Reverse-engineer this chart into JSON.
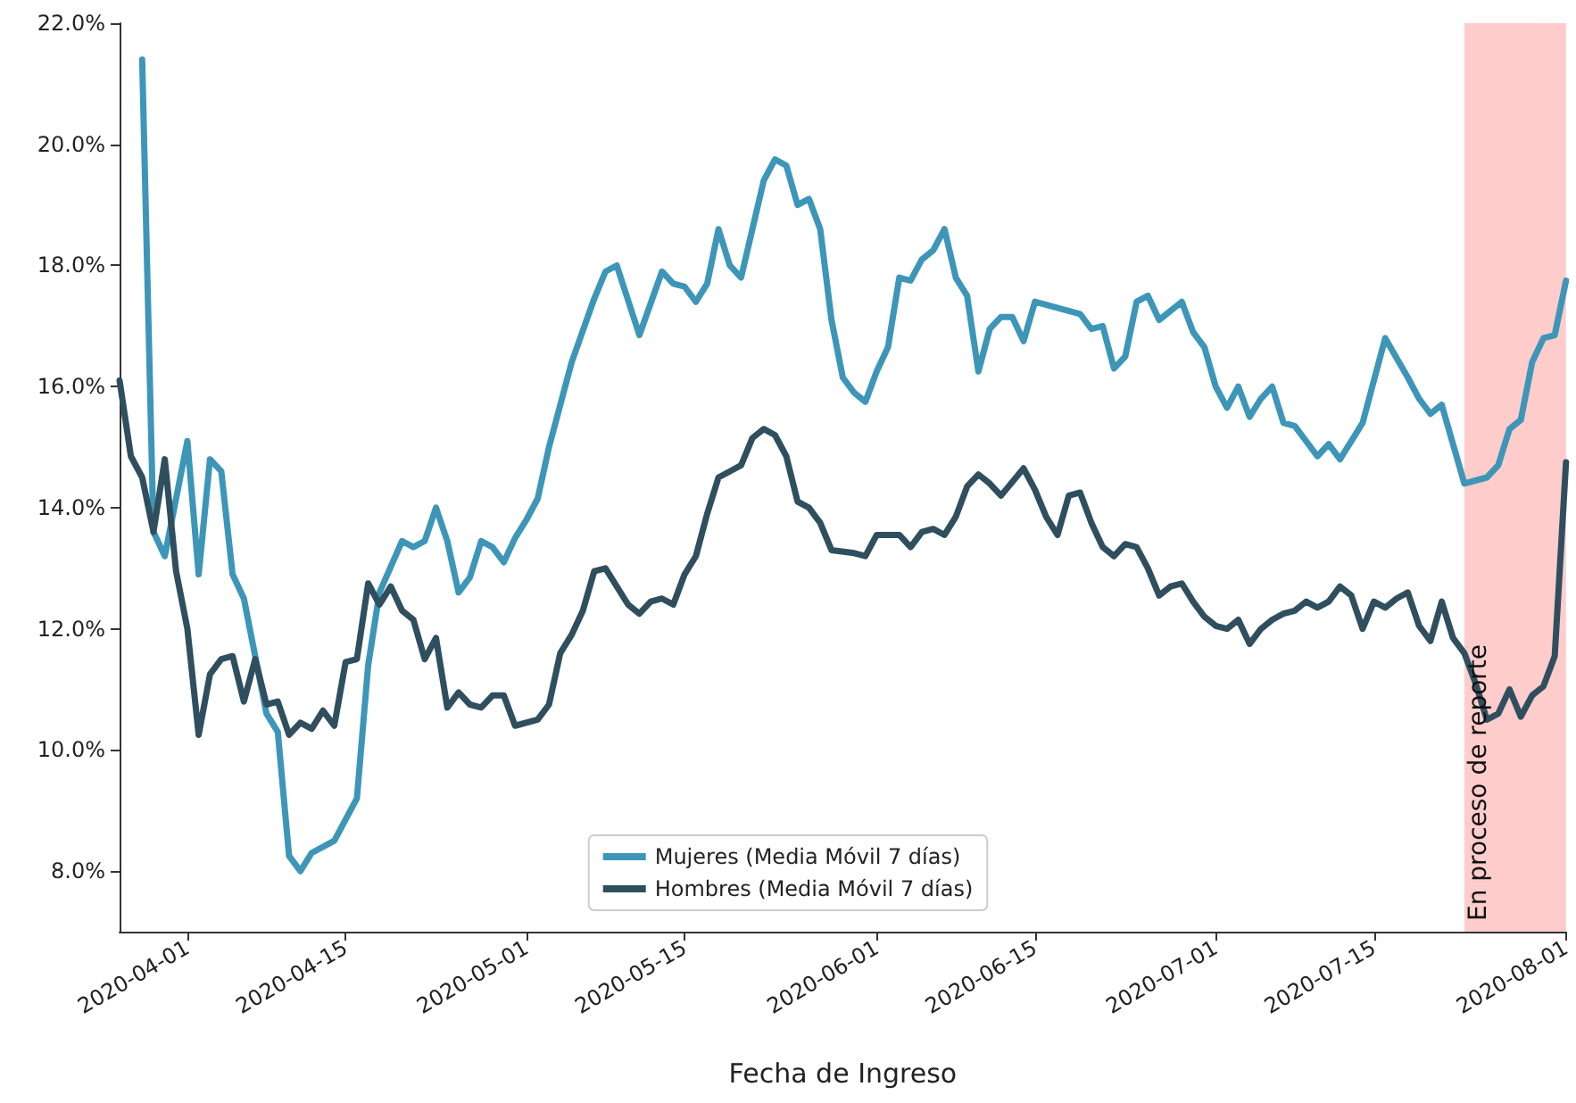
{
  "chart_data": {
    "type": "line",
    "xlabel": "Fecha de Ingreso",
    "xlim": [
      "2020-03-26",
      "2020-08-01"
    ],
    "xticks": [
      "2020-04-01",
      "2020-04-15",
      "2020-05-01",
      "2020-05-15",
      "2020-06-01",
      "2020-06-15",
      "2020-07-01",
      "2020-07-15",
      "2020-08-01"
    ],
    "ylim": [
      7,
      22
    ],
    "yticks": [
      {
        "value": 8,
        "label": "8.0%"
      },
      {
        "value": 10,
        "label": "10.0%"
      },
      {
        "value": 12,
        "label": "12.0%"
      },
      {
        "value": 14,
        "label": "14.0%"
      },
      {
        "value": 16,
        "label": "16.0%"
      },
      {
        "value": 18,
        "label": "18.0%"
      },
      {
        "value": 20,
        "label": "20.0%"
      },
      {
        "value": 22,
        "label": "22.0%"
      }
    ],
    "grid": false,
    "legend": "bottom",
    "marker": "none",
    "line_style": "solid",
    "bands": [
      {
        "axis": "x",
        "from": "2020-07-23",
        "to": "2020-08-01",
        "label": "En proceso de reporte",
        "color": "#ffcccc"
      }
    ],
    "series": [
      {
        "name": "Mujeres (Media Móvil 7 días)",
        "color": "#3d96b8",
        "x": [
          "2020-03-28",
          "2020-03-29",
          "2020-03-30",
          "2020-04-01",
          "2020-04-02",
          "2020-04-03",
          "2020-04-04",
          "2020-04-05",
          "2020-04-06",
          "2020-04-08",
          "2020-04-09",
          "2020-04-10",
          "2020-04-11",
          "2020-04-12",
          "2020-04-14",
          "2020-04-16",
          "2020-04-17",
          "2020-04-18",
          "2020-04-20",
          "2020-04-21",
          "2020-04-22",
          "2020-04-23",
          "2020-04-24",
          "2020-04-25",
          "2020-04-26",
          "2020-04-27",
          "2020-04-28",
          "2020-04-29",
          "2020-04-30",
          "2020-05-01",
          "2020-05-02",
          "2020-05-03",
          "2020-05-05",
          "2020-05-07",
          "2020-05-08",
          "2020-05-09",
          "2020-05-11",
          "2020-05-13",
          "2020-05-14",
          "2020-05-15",
          "2020-05-16",
          "2020-05-17",
          "2020-05-18",
          "2020-05-19",
          "2020-05-20",
          "2020-05-22",
          "2020-05-23",
          "2020-05-24",
          "2020-05-25",
          "2020-05-26",
          "2020-05-27",
          "2020-05-28",
          "2020-05-29",
          "2020-05-30",
          "2020-05-31",
          "2020-06-01",
          "2020-06-02",
          "2020-06-03",
          "2020-06-04",
          "2020-06-05",
          "2020-06-06",
          "2020-06-07",
          "2020-06-08",
          "2020-06-09",
          "2020-06-10",
          "2020-06-11",
          "2020-06-12",
          "2020-06-13",
          "2020-06-14",
          "2020-06-15",
          "2020-06-19",
          "2020-06-20",
          "2020-06-21",
          "2020-06-22",
          "2020-06-23",
          "2020-06-24",
          "2020-06-25",
          "2020-06-26",
          "2020-06-28",
          "2020-06-29",
          "2020-06-30",
          "2020-07-01",
          "2020-07-02",
          "2020-07-03",
          "2020-07-04",
          "2020-07-05",
          "2020-07-06",
          "2020-07-07",
          "2020-07-08",
          "2020-07-09",
          "2020-07-10",
          "2020-07-11",
          "2020-07-12",
          "2020-07-13",
          "2020-07-14",
          "2020-07-16",
          "2020-07-18",
          "2020-07-19",
          "2020-07-20",
          "2020-07-21",
          "2020-07-23",
          "2020-07-25",
          "2020-07-26",
          "2020-07-27",
          "2020-07-28",
          "2020-07-29",
          "2020-07-30",
          "2020-07-31",
          "2020-08-01"
        ],
        "values": [
          21.4,
          13.6,
          13.2,
          15.1,
          12.9,
          14.8,
          14.6,
          12.9,
          12.5,
          10.6,
          10.3,
          8.25,
          8.0,
          8.3,
          8.5,
          9.2,
          11.4,
          12.6,
          13.45,
          13.35,
          13.45,
          14.0,
          13.45,
          12.6,
          12.85,
          13.45,
          13.35,
          13.1,
          13.5,
          13.8,
          14.15,
          15.0,
          16.4,
          17.45,
          17.9,
          18.0,
          16.85,
          17.9,
          17.7,
          17.65,
          17.4,
          17.7,
          18.6,
          18.0,
          17.8,
          19.4,
          19.75,
          19.65,
          19.0,
          19.1,
          18.6,
          17.1,
          16.15,
          15.9,
          15.75,
          16.25,
          16.65,
          17.8,
          17.75,
          18.1,
          18.25,
          18.6,
          17.8,
          17.5,
          16.25,
          16.95,
          17.15,
          17.15,
          16.75,
          17.4,
          17.2,
          16.95,
          17.0,
          16.3,
          16.5,
          17.4,
          17.5,
          17.1,
          17.4,
          16.9,
          16.65,
          16.0,
          15.65,
          16.0,
          15.5,
          15.8,
          16.0,
          15.4,
          15.35,
          15.1,
          14.85,
          15.05,
          14.8,
          15.1,
          15.4,
          16.8,
          16.15,
          15.8,
          15.55,
          15.7,
          14.4,
          14.5,
          14.7,
          15.3,
          15.45,
          16.4,
          16.8,
          16.85,
          17.75
        ]
      },
      {
        "name": "Hombres (Media Móvil 7 días)",
        "color": "#2f4f5e",
        "x": [
          "2020-03-26",
          "2020-03-27",
          "2020-03-28",
          "2020-03-29",
          "2020-03-30",
          "2020-03-31",
          "2020-04-01",
          "2020-04-02",
          "2020-04-03",
          "2020-04-04",
          "2020-04-05",
          "2020-04-06",
          "2020-04-07",
          "2020-04-08",
          "2020-04-09",
          "2020-04-10",
          "2020-04-11",
          "2020-04-12",
          "2020-04-13",
          "2020-04-14",
          "2020-04-15",
          "2020-04-16",
          "2020-04-17",
          "2020-04-18",
          "2020-04-19",
          "2020-04-20",
          "2020-04-21",
          "2020-04-22",
          "2020-04-23",
          "2020-04-24",
          "2020-04-25",
          "2020-04-26",
          "2020-04-27",
          "2020-04-28",
          "2020-04-29",
          "2020-04-30",
          "2020-05-02",
          "2020-05-03",
          "2020-05-04",
          "2020-05-05",
          "2020-05-06",
          "2020-05-07",
          "2020-05-08",
          "2020-05-10",
          "2020-05-11",
          "2020-05-12",
          "2020-05-13",
          "2020-05-14",
          "2020-05-15",
          "2020-05-16",
          "2020-05-17",
          "2020-05-18",
          "2020-05-19",
          "2020-05-20",
          "2020-05-21",
          "2020-05-22",
          "2020-05-23",
          "2020-05-24",
          "2020-05-25",
          "2020-05-26",
          "2020-05-27",
          "2020-05-28",
          "2020-05-30",
          "2020-05-31",
          "2020-06-01",
          "2020-06-03",
          "2020-06-04",
          "2020-06-05",
          "2020-06-06",
          "2020-06-07",
          "2020-06-08",
          "2020-06-09",
          "2020-06-10",
          "2020-06-11",
          "2020-06-12",
          "2020-06-14",
          "2020-06-15",
          "2020-06-16",
          "2020-06-17",
          "2020-06-18",
          "2020-06-19",
          "2020-06-20",
          "2020-06-21",
          "2020-06-22",
          "2020-06-23",
          "2020-06-24",
          "2020-06-25",
          "2020-06-26",
          "2020-06-27",
          "2020-06-28",
          "2020-06-29",
          "2020-06-30",
          "2020-07-01",
          "2020-07-02",
          "2020-07-03",
          "2020-07-04",
          "2020-07-05",
          "2020-07-06",
          "2020-07-07",
          "2020-07-08",
          "2020-07-09",
          "2020-07-10",
          "2020-07-11",
          "2020-07-12",
          "2020-07-13",
          "2020-07-14",
          "2020-07-15",
          "2020-07-16",
          "2020-07-17",
          "2020-07-18",
          "2020-07-19",
          "2020-07-20",
          "2020-07-21",
          "2020-07-22",
          "2020-07-23",
          "2020-07-24",
          "2020-07-25",
          "2020-07-26",
          "2020-07-27",
          "2020-07-28",
          "2020-07-29",
          "2020-07-30",
          "2020-07-31",
          "2020-08-01"
        ],
        "values": [
          16.1,
          14.85,
          14.5,
          13.6,
          14.8,
          12.95,
          12.0,
          10.25,
          11.25,
          11.5,
          11.55,
          10.8,
          11.5,
          10.75,
          10.8,
          10.25,
          10.45,
          10.35,
          10.65,
          10.4,
          11.45,
          11.5,
          12.75,
          12.4,
          12.7,
          12.3,
          12.15,
          11.5,
          11.85,
          10.7,
          10.95,
          10.75,
          10.7,
          10.9,
          10.9,
          10.4,
          10.5,
          10.75,
          11.6,
          11.9,
          12.3,
          12.95,
          13.0,
          12.4,
          12.25,
          12.45,
          12.5,
          12.4,
          12.9,
          13.2,
          13.9,
          14.5,
          14.6,
          14.7,
          15.15,
          15.3,
          15.2,
          14.85,
          14.1,
          14.0,
          13.75,
          13.3,
          13.25,
          13.2,
          13.55,
          13.55,
          13.35,
          13.6,
          13.65,
          13.55,
          13.85,
          14.35,
          14.55,
          14.4,
          14.2,
          14.65,
          14.3,
          13.85,
          13.55,
          14.2,
          14.25,
          13.75,
          13.35,
          13.2,
          13.4,
          13.35,
          13.0,
          12.55,
          12.7,
          12.75,
          12.45,
          12.2,
          12.05,
          12.0,
          12.15,
          11.75,
          12.0,
          12.15,
          12.25,
          12.3,
          12.45,
          12.35,
          12.45,
          12.7,
          12.55,
          12.0,
          12.45,
          12.35,
          12.5,
          12.6,
          12.05,
          11.8,
          12.45,
          11.85,
          11.6,
          11.1,
          10.5,
          10.6,
          11.0,
          10.55,
          10.9,
          11.05,
          11.55,
          14.75
        ]
      }
    ]
  }
}
